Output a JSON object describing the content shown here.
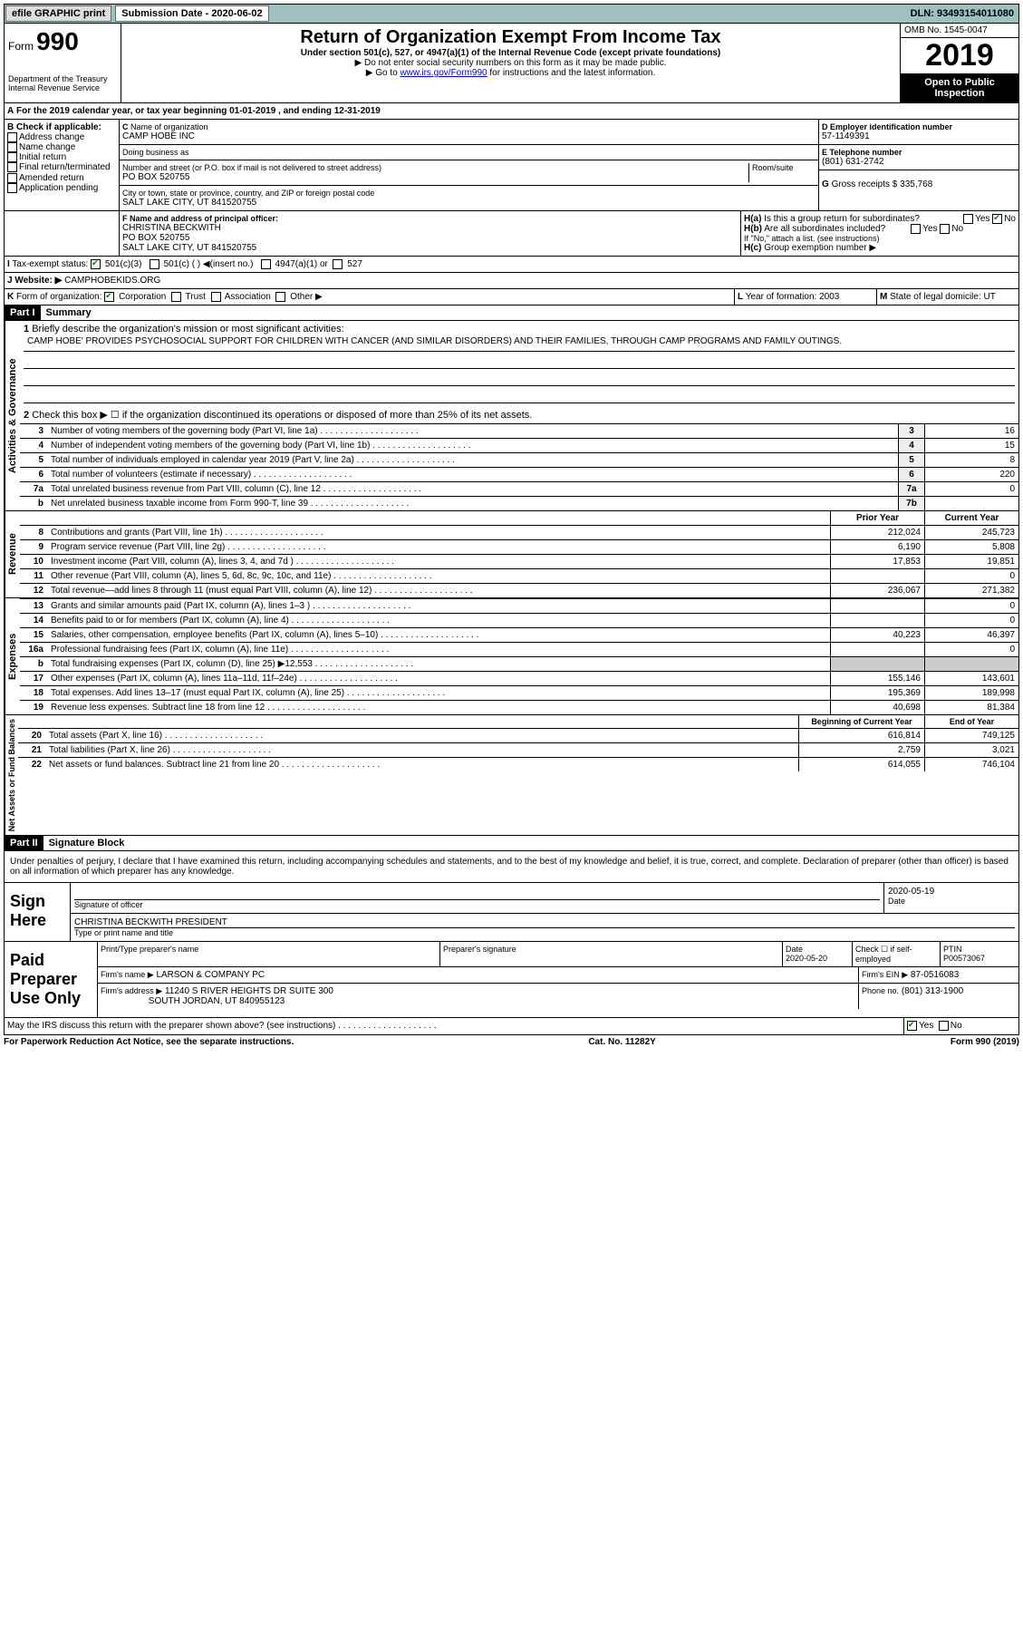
{
  "topbar": {
    "efile": "efile GRAPHIC print",
    "submission": "Submission Date - 2020-06-02",
    "dln": "DLN: 93493154011080"
  },
  "header": {
    "form": "990",
    "formword": "Form",
    "title": "Return of Organization Exempt From Income Tax",
    "sub1": "Under section 501(c), 527, or 4947(a)(1) of the Internal Revenue Code (except private foundations)",
    "sub2": "▶ Do not enter social security numbers on this form as it may be made public.",
    "sub3": "▶ Go to ",
    "sublink": "www.irs.gov/Form990",
    "sub3b": " for instructions and the latest information.",
    "dept": "Department of the Treasury",
    "irs": "Internal Revenue Service",
    "omb": "OMB No. 1545-0047",
    "year": "2019",
    "open": "Open to Public Inspection"
  },
  "A": {
    "text": "For the 2019 calendar year, or tax year beginning 01-01-2019    , and ending 12-31-2019"
  },
  "B": {
    "label": "Check if applicable:",
    "opts": [
      "Address change",
      "Name change",
      "Initial return",
      "Final return/terminated",
      "Amended return",
      "Application pending"
    ]
  },
  "C": {
    "namelabel": "Name of organization",
    "name": "CAMP HOBE INC",
    "dbalabel": "Doing business as",
    "dba": "",
    "addrlabel": "Number and street (or P.O. box if mail is not delivered to street address)",
    "room": "Room/suite",
    "addr": "PO BOX 520755",
    "citylabel": "City or town, state or province, country, and ZIP or foreign postal code",
    "city": "SALT LAKE CITY, UT  841520755"
  },
  "D": {
    "label": "Employer identification number",
    "val": "57-1149391"
  },
  "E": {
    "label": "Telephone number",
    "val": "(801) 631-2742"
  },
  "G": {
    "label": "Gross receipts $",
    "val": "335,768"
  },
  "F": {
    "label": "Name and address of principal officer:",
    "name": "CHRISTINA BECKWITH",
    "addr": "PO BOX 520755",
    "city": "SALT LAKE CITY, UT  841520755"
  },
  "H": {
    "a": "Is this a group return for subordinates?",
    "b": "Are all subordinates included?",
    "bnote": "If \"No,\" attach a list. (see instructions)",
    "c": "Group exemption number ▶"
  },
  "I": {
    "label": "Tax-exempt status:",
    "o1": "501(c)(3)",
    "o2": "501(c) (  ) ◀(insert no.)",
    "o3": "4947(a)(1) or",
    "o4": "527"
  },
  "J": {
    "label": "Website: ▶",
    "val": "CAMPHOBEKIDS.ORG"
  },
  "K": {
    "label": "Form of organization:",
    "opts": [
      "Corporation",
      "Trust",
      "Association",
      "Other ▶"
    ]
  },
  "L": {
    "label": "Year of formation:",
    "val": "2003"
  },
  "M": {
    "label": "State of legal domicile:",
    "val": "UT"
  },
  "partI": {
    "tag": "Part I",
    "title": "Summary"
  },
  "mission": {
    "label": "Briefly describe the organization's mission or most significant activities:",
    "text": "CAMP HOBE' PROVIDES PSYCHOSOCIAL SUPPORT FOR CHILDREN WITH CANCER (AND SIMILAR DISORDERS) AND THEIR FAMILIES, THROUGH CAMP PROGRAMS AND FAMILY OUTINGS."
  },
  "line2": "Check this box ▶ ☐ if the organization discontinued its operations or disposed of more than 25% of its net assets.",
  "gov": {
    "label": "Activities & Governance",
    "lines": [
      {
        "n": "3",
        "t": "Number of voting members of the governing body (Part VI, line 1a)",
        "box": "3",
        "v": "16"
      },
      {
        "n": "4",
        "t": "Number of independent voting members of the governing body (Part VI, line 1b)",
        "box": "4",
        "v": "15"
      },
      {
        "n": "5",
        "t": "Total number of individuals employed in calendar year 2019 (Part V, line 2a)",
        "box": "5",
        "v": "8"
      },
      {
        "n": "6",
        "t": "Total number of volunteers (estimate if necessary)",
        "box": "6",
        "v": "220"
      },
      {
        "n": "7a",
        "t": "Total unrelated business revenue from Part VIII, column (C), line 12",
        "box": "7a",
        "v": "0"
      },
      {
        "n": "b",
        "t": "Net unrelated business taxable income from Form 990-T, line 39",
        "box": "7b",
        "v": ""
      }
    ]
  },
  "rev": {
    "label": "Revenue",
    "prior": "Prior Year",
    "curr": "Current Year",
    "lines": [
      {
        "n": "8",
        "t": "Contributions and grants (Part VIII, line 1h)",
        "p": "212,024",
        "c": "245,723"
      },
      {
        "n": "9",
        "t": "Program service revenue (Part VIII, line 2g)",
        "p": "6,190",
        "c": "5,808"
      },
      {
        "n": "10",
        "t": "Investment income (Part VIII, column (A), lines 3, 4, and 7d )",
        "p": "17,853",
        "c": "19,851"
      },
      {
        "n": "11",
        "t": "Other revenue (Part VIII, column (A), lines 5, 6d, 8c, 9c, 10c, and 11e)",
        "p": "",
        "c": "0"
      },
      {
        "n": "12",
        "t": "Total revenue—add lines 8 through 11 (must equal Part VIII, column (A), line 12)",
        "p": "236,067",
        "c": "271,382"
      }
    ]
  },
  "exp": {
    "label": "Expenses",
    "lines": [
      {
        "n": "13",
        "t": "Grants and similar amounts paid (Part IX, column (A), lines 1–3 )",
        "p": "",
        "c": "0"
      },
      {
        "n": "14",
        "t": "Benefits paid to or for members (Part IX, column (A), line 4)",
        "p": "",
        "c": "0"
      },
      {
        "n": "15",
        "t": "Salaries, other compensation, employee benefits (Part IX, column (A), lines 5–10)",
        "p": "40,223",
        "c": "46,397"
      },
      {
        "n": "16a",
        "t": "Professional fundraising fees (Part IX, column (A), line 11e)",
        "p": "",
        "c": "0"
      },
      {
        "n": "b",
        "t": "Total fundraising expenses (Part IX, column (D), line 25) ▶12,553",
        "p": "grey",
        "c": "grey"
      },
      {
        "n": "17",
        "t": "Other expenses (Part IX, column (A), lines 11a–11d, 11f–24e)",
        "p": "155,146",
        "c": "143,601"
      },
      {
        "n": "18",
        "t": "Total expenses. Add lines 13–17 (must equal Part IX, column (A), line 25)",
        "p": "195,369",
        "c": "189,998"
      },
      {
        "n": "19",
        "t": "Revenue less expenses. Subtract line 18 from line 12",
        "p": "40,698",
        "c": "81,384"
      }
    ]
  },
  "net": {
    "label": "Net Assets or Fund Balances",
    "beg": "Beginning of Current Year",
    "end": "End of Year",
    "lines": [
      {
        "n": "20",
        "t": "Total assets (Part X, line 16)",
        "p": "616,814",
        "c": "749,125"
      },
      {
        "n": "21",
        "t": "Total liabilities (Part X, line 26)",
        "p": "2,759",
        "c": "3,021"
      },
      {
        "n": "22",
        "t": "Net assets or fund balances. Subtract line 21 from line 20",
        "p": "614,055",
        "c": "746,104"
      }
    ]
  },
  "partII": {
    "tag": "Part II",
    "title": "Signature Block"
  },
  "penalty": "Under penalties of perjury, I declare that I have examined this return, including accompanying schedules and statements, and to the best of my knowledge and belief, it is true, correct, and complete. Declaration of preparer (other than officer) is based on all information of which preparer has any knowledge.",
  "sign": {
    "here": "Sign Here",
    "sigoff": "Signature of officer",
    "date": "Date",
    "datev": "2020-05-19",
    "name": "CHRISTINA BECKWITH  PRESIDENT",
    "typename": "Type or print name and title"
  },
  "paid": {
    "label": "Paid Preparer Use Only",
    "h": [
      "Print/Type preparer's name",
      "Preparer's signature",
      "Date",
      "Check ☐ if self-employed",
      "PTIN"
    ],
    "datev": "2020-05-20",
    "ptin": "P00573067",
    "firm": "Firm's name   ▶",
    "firmv": "LARSON & COMPANY PC",
    "ein": "Firm's EIN ▶",
    "einv": "87-0516083",
    "addr": "Firm's address ▶",
    "addrv": "11240 S RIVER HEIGHTS DR SUITE 300",
    "city": "SOUTH JORDAN, UT  840955123",
    "phone": "Phone no.",
    "phonev": "(801) 313-1900"
  },
  "discuss": "May the IRS discuss this return with the preparer shown above? (see instructions)",
  "footer": {
    "pra": "For Paperwork Reduction Act Notice, see the separate instructions.",
    "cat": "Cat. No. 11282Y",
    "form": "Form 990 (2019)"
  }
}
